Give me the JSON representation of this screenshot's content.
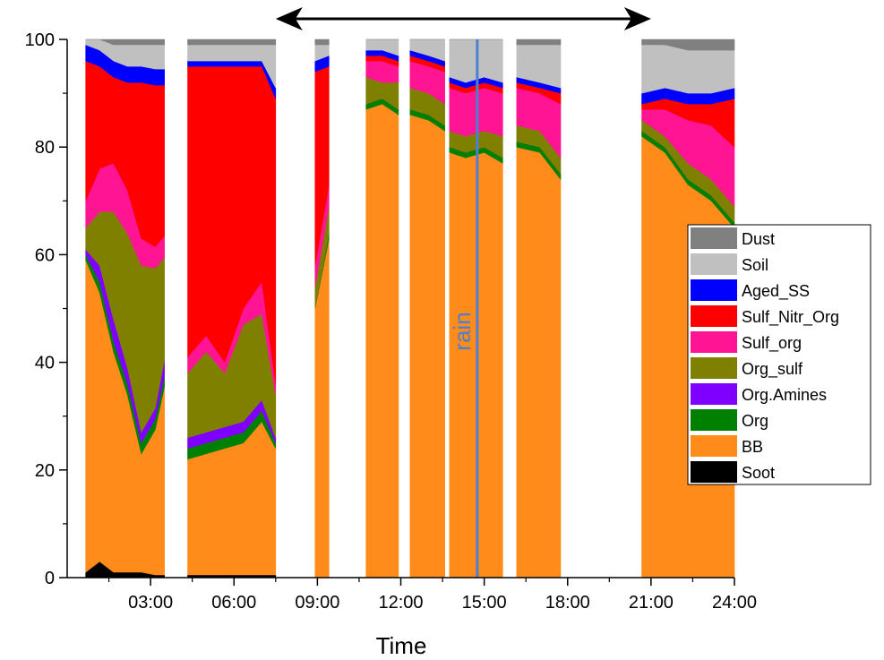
{
  "chart_data": {
    "type": "area",
    "subtype": "stacked-100-percent",
    "xlabel": "Time",
    "ylabel": "",
    "xlim": [
      "00:00",
      "24:00"
    ],
    "ylim": [
      0,
      100
    ],
    "x_ticks": [
      "03:00",
      "06:00",
      "09:00",
      "12:00",
      "15:00",
      "18:00",
      "21:00",
      "24:00"
    ],
    "y_ticks": [
      0,
      20,
      40,
      60,
      80,
      100
    ],
    "grid": false,
    "legend_position": "right",
    "series_order_bottom_to_top": [
      "Soot",
      "BB",
      "Org",
      "Org.Amines",
      "Org_sulf",
      "Sulf_org",
      "Sulf_Nitr_Org",
      "Aged_SS",
      "Soil",
      "Dust"
    ],
    "series": [
      {
        "name": "Dust",
        "color": "#808080"
      },
      {
        "name": "Soil",
        "color": "#c0c0c0"
      },
      {
        "name": "Aged_SS",
        "color": "#0000ff"
      },
      {
        "name": "Sulf_Nitr_Org",
        "color": "#ff0000"
      },
      {
        "name": "Sulf_org",
        "color": "#ff1493"
      },
      {
        "name": "Org_sulf",
        "color": "#808000"
      },
      {
        "name": "Org.Amines",
        "color": "#8000ff"
      },
      {
        "name": "Org",
        "color": "#008000"
      },
      {
        "name": "BB",
        "color": "#ff8c1a"
      },
      {
        "name": "Soot",
        "color": "#000000"
      }
    ],
    "segments": [
      {
        "start": "00:40",
        "end": "03:30",
        "points": [
          {
            "t": "00:40",
            "Soot": 1,
            "BB": 58,
            "Org": 1,
            "Org.Amines": 1,
            "Org_sulf": 4,
            "Sulf_org": 5,
            "Sulf_Nitr_Org": 26,
            "Aged_SS": 3,
            "Soil": 1,
            "Dust": 0
          },
          {
            "t": "01:10",
            "Soot": 3,
            "BB": 50,
            "Org": 2,
            "Org.Amines": 3,
            "Org_sulf": 10,
            "Sulf_org": 8,
            "Sulf_Nitr_Org": 19,
            "Aged_SS": 3,
            "Soil": 2,
            "Dust": 0
          },
          {
            "t": "01:40",
            "Soot": 1,
            "BB": 41,
            "Org": 2,
            "Org.Amines": 4,
            "Org_sulf": 20,
            "Sulf_org": 9,
            "Sulf_Nitr_Org": 16,
            "Aged_SS": 3,
            "Soil": 3,
            "Dust": 1
          },
          {
            "t": "02:10",
            "Soot": 1,
            "BB": 33,
            "Org": 2,
            "Org.Amines": 3,
            "Org_sulf": 25,
            "Sulf_org": 8,
            "Sulf_Nitr_Org": 20,
            "Aged_SS": 3,
            "Soil": 4,
            "Dust": 1
          },
          {
            "t": "02:40",
            "Soot": 1,
            "BB": 22,
            "Org": 2,
            "Org.Amines": 2,
            "Org_sulf": 31,
            "Sulf_org": 5,
            "Sulf_Nitr_Org": 29,
            "Aged_SS": 3,
            "Soil": 4,
            "Dust": 1
          },
          {
            "t": "03:10",
            "Soot": 0.5,
            "BB": 27,
            "Org": 2,
            "Org.Amines": 2,
            "Org_sulf": 26,
            "Sulf_org": 4,
            "Sulf_Nitr_Org": 30,
            "Aged_SS": 3,
            "Soil": 4.5,
            "Dust": 1
          },
          {
            "t": "03:30",
            "Soot": 0.5,
            "BB": 35,
            "Org": 2,
            "Org.Amines": 3,
            "Org_sulf": 19,
            "Sulf_org": 4,
            "Sulf_Nitr_Org": 28,
            "Aged_SS": 3,
            "Soil": 4.5,
            "Dust": 1
          }
        ]
      },
      {
        "start": "04:20",
        "end": "07:30",
        "points": [
          {
            "t": "04:20",
            "Soot": 0.5,
            "BB": 21.5,
            "Org": 2,
            "Org.Amines": 2,
            "Org_sulf": 12,
            "Sulf_org": 3,
            "Sulf_Nitr_Org": 54,
            "Aged_SS": 1,
            "Soil": 3,
            "Dust": 1
          },
          {
            "t": "05:00",
            "Soot": 0.5,
            "BB": 22.5,
            "Org": 2,
            "Org.Amines": 2,
            "Org_sulf": 15,
            "Sulf_org": 3,
            "Sulf_Nitr_Org": 50,
            "Aged_SS": 1,
            "Soil": 3,
            "Dust": 1
          },
          {
            "t": "05:40",
            "Soot": 0.5,
            "BB": 23.5,
            "Org": 2,
            "Org.Amines": 2,
            "Org_sulf": 10,
            "Sulf_org": 2,
            "Sulf_Nitr_Org": 55,
            "Aged_SS": 1,
            "Soil": 3,
            "Dust": 1
          },
          {
            "t": "06:20",
            "Soot": 0.5,
            "BB": 24.5,
            "Org": 2,
            "Org.Amines": 2,
            "Org_sulf": 18,
            "Sulf_org": 3,
            "Sulf_Nitr_Org": 45,
            "Aged_SS": 1,
            "Soil": 3,
            "Dust": 1
          },
          {
            "t": "07:00",
            "Soot": 0.5,
            "BB": 28.5,
            "Org": 2,
            "Org.Amines": 2,
            "Org_sulf": 16,
            "Sulf_org": 6,
            "Sulf_Nitr_Org": 40,
            "Aged_SS": 1,
            "Soil": 3,
            "Dust": 1
          },
          {
            "t": "07:30",
            "Soot": 0.5,
            "BB": 23.5,
            "Org": 1,
            "Org.Amines": 1,
            "Org_sulf": 8,
            "Sulf_org": 2,
            "Sulf_Nitr_Org": 53,
            "Aged_SS": 2,
            "Soil": 8,
            "Dust": 1
          }
        ]
      },
      {
        "start": "08:55",
        "end": "09:25",
        "points": [
          {
            "t": "08:55",
            "Soot": 0,
            "BB": 50,
            "Org": 0,
            "Org.Amines": 0,
            "Org_sulf": 4,
            "Sulf_org": 4,
            "Sulf_Nitr_Org": 36,
            "Aged_SS": 2,
            "Soil": 3,
            "Dust": 1
          },
          {
            "t": "09:25",
            "Soot": 0,
            "BB": 63,
            "Org": 1,
            "Org.Amines": 0,
            "Org_sulf": 5,
            "Sulf_org": 4,
            "Sulf_Nitr_Org": 22,
            "Aged_SS": 2,
            "Soil": 2,
            "Dust": 1
          }
        ]
      },
      {
        "start": "10:45",
        "end": "11:55",
        "points": [
          {
            "t": "10:45",
            "Soot": 0,
            "BB": 87,
            "Org": 1,
            "Org.Amines": 0,
            "Org_sulf": 5,
            "Sulf_org": 3,
            "Sulf_Nitr_Org": 1,
            "Aged_SS": 1,
            "Soil": 2,
            "Dust": 0
          },
          {
            "t": "11:20",
            "Soot": 0,
            "BB": 88,
            "Org": 1,
            "Org.Amines": 0,
            "Org_sulf": 3,
            "Sulf_org": 4,
            "Sulf_Nitr_Org": 1,
            "Aged_SS": 1,
            "Soil": 2,
            "Dust": 0
          },
          {
            "t": "11:55",
            "Soot": 0,
            "BB": 86,
            "Org": 1,
            "Org.Amines": 0,
            "Org_sulf": 5,
            "Sulf_org": 3,
            "Sulf_Nitr_Org": 1,
            "Aged_SS": 1,
            "Soil": 3,
            "Dust": 0
          }
        ]
      },
      {
        "start": "12:20",
        "end": "13:35",
        "points": [
          {
            "t": "12:20",
            "Soot": 0,
            "BB": 86,
            "Org": 1,
            "Org.Amines": 0,
            "Org_sulf": 4,
            "Sulf_org": 5,
            "Sulf_Nitr_Org": 1,
            "Aged_SS": 1,
            "Soil": 2,
            "Dust": 0
          },
          {
            "t": "13:00",
            "Soot": 0,
            "BB": 85,
            "Org": 1,
            "Org.Amines": 0,
            "Org_sulf": 4,
            "Sulf_org": 5,
            "Sulf_Nitr_Org": 1,
            "Aged_SS": 1,
            "Soil": 3,
            "Dust": 0
          },
          {
            "t": "13:35",
            "Soot": 0,
            "BB": 83,
            "Org": 1,
            "Org.Amines": 0,
            "Org_sulf": 4,
            "Sulf_org": 6,
            "Sulf_Nitr_Org": 1,
            "Aged_SS": 1,
            "Soil": 4,
            "Dust": 0
          }
        ]
      },
      {
        "start": "13:45",
        "end": "15:40",
        "points": [
          {
            "t": "13:45",
            "Soot": 0,
            "BB": 79,
            "Org": 1,
            "Org.Amines": 0,
            "Org_sulf": 3,
            "Sulf_org": 8,
            "Sulf_Nitr_Org": 1,
            "Aged_SS": 1,
            "Soil": 7,
            "Dust": 0
          },
          {
            "t": "14:20",
            "Soot": 0,
            "BB": 78,
            "Org": 1,
            "Org.Amines": 0,
            "Org_sulf": 3,
            "Sulf_org": 8,
            "Sulf_Nitr_Org": 1,
            "Aged_SS": 1,
            "Soil": 8,
            "Dust": 0
          },
          {
            "t": "15:00",
            "Soot": 0,
            "BB": 79,
            "Org": 1,
            "Org.Amines": 0,
            "Org_sulf": 3,
            "Sulf_org": 8,
            "Sulf_Nitr_Org": 1,
            "Aged_SS": 1,
            "Soil": 7,
            "Dust": 0
          },
          {
            "t": "15:40",
            "Soot": 0,
            "BB": 77,
            "Org": 1,
            "Org.Amines": 0,
            "Org_sulf": 4,
            "Sulf_org": 8,
            "Sulf_Nitr_Org": 1,
            "Aged_SS": 1,
            "Soil": 8,
            "Dust": 0
          }
        ]
      },
      {
        "start": "16:10",
        "end": "17:45",
        "points": [
          {
            "t": "16:10",
            "Soot": 0,
            "BB": 80,
            "Org": 1,
            "Org.Amines": 0,
            "Org_sulf": 3,
            "Sulf_org": 7,
            "Sulf_Nitr_Org": 1,
            "Aged_SS": 1,
            "Soil": 6,
            "Dust": 1
          },
          {
            "t": "17:00",
            "Soot": 0,
            "BB": 79,
            "Org": 1,
            "Org.Amines": 0,
            "Org_sulf": 3,
            "Sulf_org": 7,
            "Sulf_Nitr_Org": 1,
            "Aged_SS": 1,
            "Soil": 7,
            "Dust": 1
          },
          {
            "t": "17:45",
            "Soot": 0,
            "BB": 74,
            "Org": 1,
            "Org.Amines": 0,
            "Org_sulf": 3,
            "Sulf_org": 10,
            "Sulf_Nitr_Org": 2,
            "Aged_SS": 1,
            "Soil": 8,
            "Dust": 1
          }
        ]
      },
      {
        "start": "20:40",
        "end": "24:00",
        "points": [
          {
            "t": "20:40",
            "Soot": 0,
            "BB": 82,
            "Org": 1,
            "Org.Amines": 0,
            "Org_sulf": 2,
            "Sulf_org": 2,
            "Sulf_Nitr_Org": 1,
            "Aged_SS": 2,
            "Soil": 9,
            "Dust": 1
          },
          {
            "t": "21:30",
            "Soot": 0,
            "BB": 79,
            "Org": 1,
            "Org.Amines": 0,
            "Org_sulf": 2,
            "Sulf_org": 5,
            "Sulf_Nitr_Org": 2,
            "Aged_SS": 2,
            "Soil": 8,
            "Dust": 1
          },
          {
            "t": "22:20",
            "Soot": 0,
            "BB": 73,
            "Org": 1,
            "Org.Amines": 0,
            "Org_sulf": 3,
            "Sulf_org": 8,
            "Sulf_Nitr_Org": 3,
            "Aged_SS": 2,
            "Soil": 8,
            "Dust": 2
          },
          {
            "t": "23:10",
            "Soot": 0,
            "BB": 70,
            "Org": 1,
            "Org.Amines": 0,
            "Org_sulf": 3,
            "Sulf_org": 10,
            "Sulf_Nitr_Org": 4,
            "Aged_SS": 2,
            "Soil": 8,
            "Dust": 2
          },
          {
            "t": "24:00",
            "Soot": 0,
            "BB": 65,
            "Org": 1,
            "Org.Amines": 0,
            "Org_sulf": 3,
            "Sulf_org": 11,
            "Sulf_Nitr_Org": 9,
            "Aged_SS": 2,
            "Soil": 7,
            "Dust": 2
          }
        ]
      }
    ],
    "annotations": [
      {
        "type": "vertical-line",
        "x": "14:45",
        "label": "rain",
        "color": "#4a7fd4"
      },
      {
        "type": "double-arrow",
        "x_start": "07:30",
        "x_end": "21:00",
        "color": "#000000"
      }
    ]
  }
}
